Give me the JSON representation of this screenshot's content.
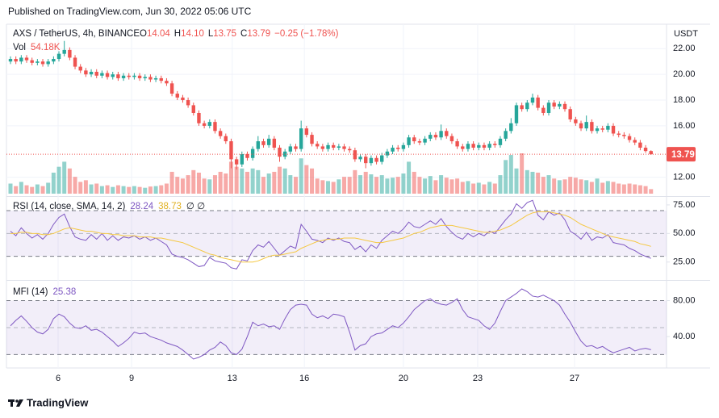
{
  "published": "Published on TradingView.com, Jun 30, 2022 05:06 UTC",
  "brand": "TradingView",
  "chart_data": [
    {
      "type": "candlestick",
      "title": "AXS / TetherUS, 4h, BINANCE",
      "currency": "USDT",
      "legend": [
        {
          "key": "O",
          "value": "14.04"
        },
        {
          "key": "H",
          "value": "14.10"
        },
        {
          "key": "L",
          "value": "13.75"
        },
        {
          "key": "C",
          "value": "13.79"
        }
      ],
      "change": "−0.25 (−1.78%)",
      "volume_title": "Vol",
      "volume_label": "54.18K",
      "up_color": "#26a69a",
      "down_color": "#ef5350",
      "ylim": [
        10.6,
        23.9
      ],
      "yticks": [
        {
          "value": 12,
          "label": "12.00"
        },
        {
          "value": 16,
          "label": "16.00"
        },
        {
          "value": 18,
          "label": "18.00"
        },
        {
          "value": 20,
          "label": "20.00"
        },
        {
          "value": 22,
          "label": "22.00"
        }
      ],
      "open": [
        21.0,
        21.2,
        21.0,
        21.3,
        21.1,
        20.9,
        21.0,
        20.8,
        21.0,
        21.2,
        21.6,
        21.9,
        21.3,
        20.6,
        20.3,
        20.0,
        20.2,
        19.9,
        20.1,
        19.8,
        20.0,
        19.7,
        19.9,
        19.8,
        19.9,
        19.7,
        19.8,
        19.6,
        19.7,
        19.5,
        19.3,
        18.5,
        18.2,
        18.0,
        17.6,
        17.0,
        16.2,
        16.0,
        16.3,
        15.6,
        15.2,
        14.8,
        13.4,
        13.0,
        13.8,
        13.5,
        14.2,
        14.8,
        14.5,
        15.0,
        14.3,
        13.6,
        14.0,
        14.4,
        14.2,
        15.8,
        15.3,
        14.6,
        14.4,
        14.2,
        14.5,
        14.3,
        14.4,
        14.2,
        14.1,
        13.4,
        13.6,
        13.1,
        13.5,
        13.2,
        13.7,
        14.0,
        14.3,
        14.2,
        14.5,
        15.1,
        14.8,
        14.7,
        15.0,
        15.3,
        15.1,
        15.6,
        15.2,
        14.8,
        14.4,
        14.2,
        14.6,
        14.3,
        14.5,
        14.3,
        14.6,
        14.5,
        15.0,
        15.6,
        16.2,
        17.6,
        17.3,
        17.8,
        18.2,
        17.4,
        17.0,
        17.8,
        17.5,
        17.7,
        17.3,
        16.5,
        16.2,
        15.8,
        16.3,
        15.6,
        15.8,
        15.7,
        16.0,
        15.4,
        15.3,
        15.2,
        14.9,
        14.7,
        14.3,
        14.04
      ],
      "high": [
        21.4,
        21.4,
        21.5,
        21.5,
        21.3,
        21.2,
        21.2,
        21.2,
        21.4,
        21.8,
        22.6,
        22.1,
        21.5,
        20.8,
        20.5,
        20.4,
        20.4,
        20.3,
        20.3,
        20.2,
        20.2,
        20.1,
        20.1,
        20.1,
        20.1,
        20.0,
        20.0,
        19.9,
        19.9,
        19.7,
        19.5,
        18.7,
        18.4,
        18.2,
        17.8,
        17.2,
        16.4,
        16.5,
        16.5,
        15.8,
        15.4,
        15.0,
        13.6,
        14.0,
        14.0,
        14.4,
        15.2,
        15.0,
        15.3,
        15.2,
        14.5,
        14.2,
        14.6,
        14.6,
        16.4,
        16.0,
        15.5,
        14.8,
        14.6,
        14.7,
        14.7,
        14.6,
        14.6,
        14.4,
        14.3,
        13.8,
        13.8,
        13.7,
        13.7,
        13.9,
        14.2,
        14.5,
        14.5,
        14.7,
        15.3,
        15.3,
        15.0,
        15.2,
        15.5,
        15.5,
        16.1,
        15.8,
        15.4,
        15.0,
        14.6,
        14.8,
        14.8,
        14.7,
        14.7,
        14.8,
        14.8,
        15.2,
        15.8,
        16.6,
        17.8,
        17.8,
        18.0,
        18.5,
        18.4,
        17.6,
        18.0,
        18.0,
        17.9,
        17.9,
        17.5,
        16.7,
        16.4,
        16.8,
        16.5,
        16.0,
        16.0,
        16.2,
        16.2,
        15.6,
        15.5,
        15.4,
        15.1,
        14.9,
        14.5,
        14.1
      ],
      "low": [
        20.8,
        20.8,
        20.8,
        20.9,
        20.7,
        20.7,
        20.6,
        20.6,
        20.8,
        21.0,
        21.4,
        21.1,
        20.4,
        20.1,
        19.8,
        19.8,
        19.7,
        19.7,
        19.6,
        19.6,
        19.5,
        19.5,
        19.6,
        19.6,
        19.5,
        19.5,
        19.4,
        19.4,
        19.3,
        19.1,
        18.3,
        18.0,
        17.8,
        17.4,
        16.8,
        16.0,
        15.8,
        15.8,
        15.4,
        15.0,
        14.6,
        12.7,
        12.6,
        12.8,
        13.3,
        13.3,
        14.0,
        14.3,
        14.3,
        14.1,
        13.2,
        13.4,
        13.8,
        14.0,
        14.0,
        15.1,
        14.4,
        14.2,
        14.0,
        14.0,
        14.1,
        14.1,
        14.0,
        13.9,
        13.2,
        13.2,
        12.7,
        12.9,
        13.0,
        13.0,
        13.5,
        13.8,
        14.0,
        14.0,
        14.3,
        14.6,
        14.5,
        14.5,
        14.8,
        14.9,
        14.9,
        15.0,
        14.6,
        14.2,
        14.0,
        14.0,
        14.1,
        14.1,
        14.1,
        14.1,
        14.3,
        14.3,
        14.8,
        15.4,
        16.0,
        17.1,
        17.1,
        17.6,
        17.2,
        16.8,
        16.8,
        17.3,
        17.3,
        17.1,
        16.3,
        16.0,
        15.6,
        15.6,
        15.4,
        15.4,
        15.5,
        15.5,
        15.2,
        15.1,
        15.0,
        14.7,
        14.5,
        14.1,
        13.9,
        13.75
      ],
      "close": [
        21.2,
        21.0,
        21.3,
        21.1,
        20.9,
        21.0,
        20.8,
        21.0,
        21.2,
        21.6,
        21.9,
        21.3,
        20.6,
        20.3,
        20.0,
        20.2,
        19.9,
        20.1,
        19.8,
        20.0,
        19.7,
        19.9,
        19.8,
        19.9,
        19.7,
        19.8,
        19.6,
        19.7,
        19.5,
        19.3,
        18.5,
        18.2,
        18.0,
        17.6,
        17.0,
        16.2,
        16.0,
        16.3,
        15.6,
        15.2,
        14.8,
        13.4,
        13.0,
        13.8,
        13.5,
        14.2,
        14.8,
        14.5,
        15.0,
        14.3,
        13.6,
        14.0,
        14.4,
        14.2,
        15.8,
        15.3,
        14.6,
        14.4,
        14.2,
        14.5,
        14.3,
        14.4,
        14.2,
        14.1,
        13.4,
        13.6,
        13.1,
        13.5,
        13.2,
        13.7,
        14.0,
        14.3,
        14.2,
        14.5,
        15.1,
        14.8,
        14.7,
        15.0,
        15.3,
        15.1,
        15.6,
        15.2,
        14.8,
        14.4,
        14.2,
        14.6,
        14.3,
        14.5,
        14.3,
        14.6,
        14.5,
        15.0,
        15.6,
        16.2,
        17.6,
        17.3,
        17.8,
        18.2,
        17.4,
        17.0,
        17.8,
        17.5,
        17.7,
        17.3,
        16.5,
        16.2,
        15.8,
        16.3,
        15.6,
        15.8,
        15.7,
        16.0,
        15.4,
        15.3,
        15.2,
        14.9,
        14.7,
        14.3,
        14.04,
        13.79
      ],
      "volume": [
        120,
        90,
        140,
        100,
        80,
        110,
        90,
        130,
        250,
        320,
        380,
        300,
        200,
        140,
        160,
        110,
        120,
        90,
        100,
        80,
        100,
        90,
        80,
        90,
        80,
        70,
        85,
        90,
        100,
        120,
        260,
        200,
        180,
        220,
        280,
        250,
        180,
        170,
        220,
        260,
        240,
        380,
        320,
        300,
        260,
        300,
        280,
        200,
        240,
        260,
        320,
        300,
        220,
        200,
        420,
        340,
        300,
        180,
        160,
        150,
        140,
        170,
        200,
        200,
        280,
        220,
        260,
        230,
        200,
        220,
        180,
        190,
        200,
        240,
        380,
        260,
        200,
        180,
        210,
        160,
        220,
        190,
        170,
        180,
        140,
        150,
        120,
        130,
        110,
        140,
        120,
        220,
        400,
        460,
        300,
        480,
        280,
        260,
        250,
        200,
        220,
        180,
        160,
        170,
        200,
        190,
        170,
        160,
        140,
        180,
        130,
        150,
        140,
        120,
        110,
        120,
        110,
        100,
        90,
        54.18
      ]
    },
    {
      "type": "line",
      "title": "RSI (14, close, SMA, 14, 2)",
      "extra": "∅ ∅",
      "band_color": "#7e57c2",
      "ylim": [
        10,
        82
      ],
      "bands": [
        30,
        70
      ],
      "midline": 50,
      "yticks": [
        {
          "value": 25,
          "label": "25.00"
        },
        {
          "value": 50,
          "label": "50.00"
        },
        {
          "value": 75,
          "label": "75.00"
        }
      ],
      "series": [
        {
          "color": "#7e57c2",
          "values": [
            52,
            48,
            55,
            50,
            46,
            49,
            45,
            50,
            58,
            64,
            67,
            56,
            47,
            45,
            44,
            49,
            45,
            50,
            44,
            48,
            44,
            47,
            46,
            48,
            45,
            47,
            44,
            46,
            43,
            40,
            32,
            30,
            29,
            27,
            24,
            21,
            22,
            29,
            26,
            25,
            24,
            20,
            19,
            27,
            26,
            35,
            40,
            38,
            43,
            37,
            31,
            35,
            39,
            37,
            58,
            52,
            45,
            44,
            42,
            46,
            44,
            46,
            43,
            42,
            36,
            39,
            34,
            40,
            37,
            44,
            48,
            52,
            50,
            54,
            60,
            56,
            55,
            58,
            61,
            58,
            63,
            56,
            51,
            47,
            45,
            50,
            47,
            50,
            48,
            52,
            50,
            56,
            62,
            67,
            76,
            72,
            77,
            79,
            66,
            62,
            69,
            66,
            68,
            62,
            52,
            49,
            45,
            51,
            44,
            47,
            46,
            49,
            42,
            41,
            40,
            37,
            35,
            32,
            30,
            28.24
          ]
        },
        {
          "color": "#f5c842",
          "values": [
            50,
            50,
            51,
            51,
            50,
            50,
            49,
            49,
            50,
            52,
            54,
            55,
            54,
            53,
            52,
            52,
            51,
            50,
            50,
            49,
            49,
            48,
            48,
            48,
            47,
            47,
            47,
            46,
            46,
            45,
            44,
            43,
            42,
            40,
            38,
            36,
            34,
            32,
            31,
            29,
            28,
            27,
            26,
            25,
            25,
            25,
            26,
            28,
            30,
            31,
            31,
            32,
            33,
            34,
            37,
            39,
            41,
            43,
            44,
            45,
            45,
            45,
            46,
            46,
            46,
            45,
            44,
            43,
            42,
            42,
            43,
            44,
            45,
            46,
            48,
            50,
            51,
            53,
            55,
            56,
            57,
            57,
            57,
            56,
            55,
            54,
            53,
            52,
            51,
            51,
            52,
            53,
            55,
            57,
            60,
            63,
            66,
            68,
            69,
            69,
            69,
            68,
            67,
            66,
            64,
            61,
            58,
            56,
            54,
            52,
            50,
            48,
            47,
            46,
            45,
            44,
            43,
            41,
            40,
            38.73
          ]
        }
      ]
    },
    {
      "type": "line",
      "title": "MFI (14)",
      "band_color": "#7e57c2",
      "ylim": [
        6,
        102
      ],
      "bands": [
        20,
        80
      ],
      "midline": 50,
      "yticks": [
        {
          "value": 40,
          "label": "40.00"
        },
        {
          "value": 80,
          "label": "80.00"
        }
      ],
      "xticks": [
        {
          "value": 8.85,
          "label": "6"
        },
        {
          "value": 22.5,
          "label": "9"
        },
        {
          "value": 41.2,
          "label": "13"
        },
        {
          "value": 54.6,
          "label": "16"
        },
        {
          "value": 73,
          "label": "20"
        },
        {
          "value": 86.8,
          "label": "23"
        },
        {
          "value": 104.8,
          "label": "27"
        }
      ],
      "series": [
        {
          "color": "#7e57c2",
          "values": [
            52,
            58,
            63,
            57,
            50,
            45,
            43,
            48,
            60,
            65,
            62,
            55,
            50,
            49,
            52,
            47,
            48,
            45,
            40,
            35,
            29,
            33,
            38,
            45,
            43,
            44,
            40,
            38,
            36,
            33,
            31,
            29,
            25,
            20,
            15,
            17,
            20,
            25,
            28,
            34,
            30,
            22,
            20,
            26,
            40,
            56,
            52,
            54,
            51,
            52,
            48,
            60,
            70,
            75,
            76,
            75,
            65,
            61,
            63,
            60,
            65,
            64,
            62,
            45,
            25,
            30,
            32,
            40,
            43,
            44,
            48,
            52,
            50,
            55,
            62,
            70,
            75,
            80,
            82,
            78,
            76,
            75,
            78,
            82,
            70,
            62,
            60,
            58,
            52,
            48,
            55,
            68,
            80,
            84,
            88,
            93,
            90,
            85,
            84,
            86,
            83,
            80,
            75,
            65,
            56,
            45,
            35,
            29,
            30,
            27,
            29,
            25,
            22,
            24,
            26,
            28,
            24,
            26,
            27,
            25.38
          ]
        }
      ]
    }
  ]
}
